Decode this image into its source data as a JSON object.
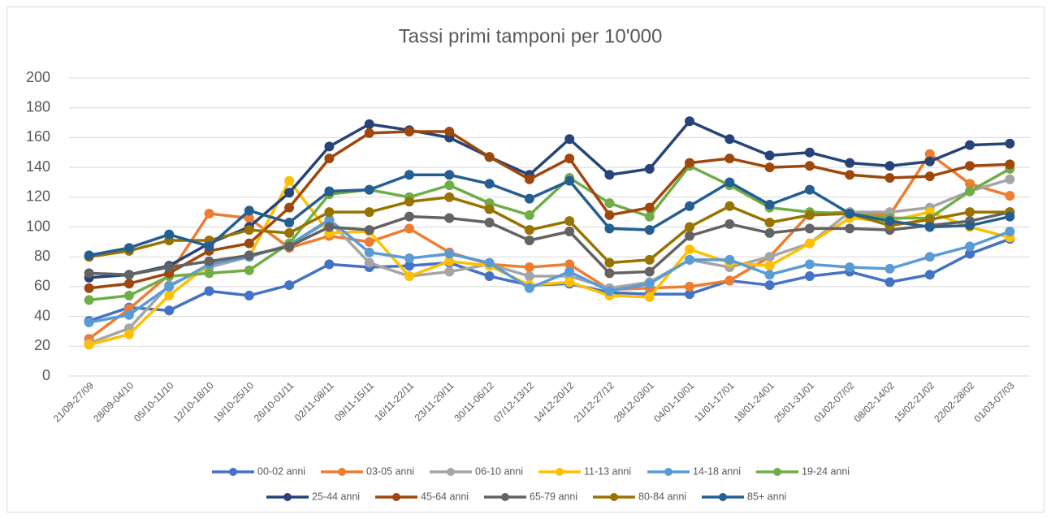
{
  "chart_data": {
    "type": "line",
    "title": "Tassi primi tamponi per 10'000",
    "categories": [
      "21/09-27/09",
      "28/09-04/10",
      "05/10-11/10",
      "12/10-18/10",
      "19/10-25/10",
      "26/10-01/11",
      "02/11-08/11",
      "09/11-15/11",
      "16/11-22/11",
      "23/11-29/11",
      "30/11-06/12",
      "07/12-13/12",
      "14/12-20/12",
      "21/12-27/12",
      "28/12-03/01",
      "04/01-10/01",
      "11/01-17/01",
      "18/01-24/01",
      "25/01-31/01",
      "01/02-07/02",
      "08/02-14/02",
      "15/02-21/02",
      "22/02-28/02",
      "01/03-07/03"
    ],
    "series": [
      {
        "name": "00-02 anni",
        "color": "#4472c4",
        "values": [
          37,
          46,
          44,
          57,
          54,
          61,
          75,
          73,
          74,
          76,
          67,
          61,
          62,
          56,
          55,
          55,
          64,
          61,
          67,
          70,
          63,
          68,
          82,
          92
        ]
      },
      {
        "name": "03-05 anni",
        "color": "#ed7d31",
        "values": [
          25,
          45,
          68,
          109,
          106,
          86,
          94,
          90,
          99,
          83,
          75,
          73,
          75,
          58,
          59,
          60,
          64,
          80,
          109,
          110,
          108,
          149,
          129,
          121
        ]
      },
      {
        "name": "06-10 anni",
        "color": "#a5a5a5",
        "values": [
          22,
          32,
          61,
          73,
          80,
          88,
          104,
          76,
          67,
          70,
          75,
          67,
          67,
          59,
          63,
          78,
          73,
          80,
          89,
          110,
          110,
          113,
          124,
          132
        ]
      },
      {
        "name": "11-13 anni",
        "color": "#ffc000",
        "values": [
          21,
          28,
          54,
          75,
          80,
          131,
          96,
          97,
          67,
          77,
          74,
          61,
          63,
          54,
          53,
          85,
          76,
          74,
          89,
          106,
          104,
          110,
          100,
          93
        ]
      },
      {
        "name": "14-18 anni",
        "color": "#5b9bd5",
        "values": [
          36,
          41,
          60,
          75,
          80,
          88,
          105,
          83,
          79,
          82,
          76,
          59,
          70,
          57,
          62,
          78,
          78,
          68,
          75,
          73,
          72,
          80,
          87,
          97
        ]
      },
      {
        "name": "19-24 anni",
        "color": "#70ad47",
        "values": [
          51,
          54,
          67,
          69,
          71,
          89,
          122,
          125,
          120,
          128,
          116,
          108,
          133,
          116,
          107,
          141,
          128,
          113,
          110,
          109,
          106,
          106,
          124,
          139
        ]
      },
      {
        "name": "25-44 anni",
        "color": "#264478",
        "values": [
          66,
          68,
          74,
          89,
          100,
          123,
          154,
          169,
          165,
          160,
          147,
          135,
          159,
          135,
          139,
          171,
          159,
          148,
          150,
          143,
          141,
          144,
          155,
          156
        ]
      },
      {
        "name": "45-64 anni",
        "color": "#9e480e",
        "values": [
          59,
          62,
          69,
          84,
          89,
          113,
          146,
          163,
          164,
          164,
          147,
          132,
          146,
          108,
          113,
          143,
          146,
          140,
          141,
          135,
          133,
          134,
          141,
          142
        ]
      },
      {
        "name": "65-79 anni",
        "color": "#636363",
        "values": [
          69,
          68,
          73,
          77,
          81,
          87,
          100,
          98,
          107,
          106,
          103,
          91,
          97,
          69,
          70,
          94,
          102,
          96,
          99,
          99,
          98,
          101,
          104,
          110
        ]
      },
      {
        "name": "80-84 anni",
        "color": "#997300",
        "values": [
          80,
          84,
          91,
          91,
          98,
          96,
          110,
          110,
          117,
          120,
          112,
          98,
          104,
          76,
          78,
          100,
          114,
          103,
          108,
          109,
          101,
          105,
          110,
          110
        ]
      },
      {
        "name": "85+ anni",
        "color": "#255e91",
        "values": [
          81,
          86,
          95,
          87,
          111,
          103,
          124,
          125,
          135,
          135,
          129,
          119,
          131,
          99,
          98,
          114,
          130,
          115,
          125,
          109,
          104,
          100,
          101,
          107
        ]
      }
    ],
    "ylim": [
      0,
      200
    ],
    "yticks": [
      0,
      20,
      40,
      60,
      80,
      100,
      120,
      140,
      160,
      180,
      200
    ],
    "grid": true
  }
}
